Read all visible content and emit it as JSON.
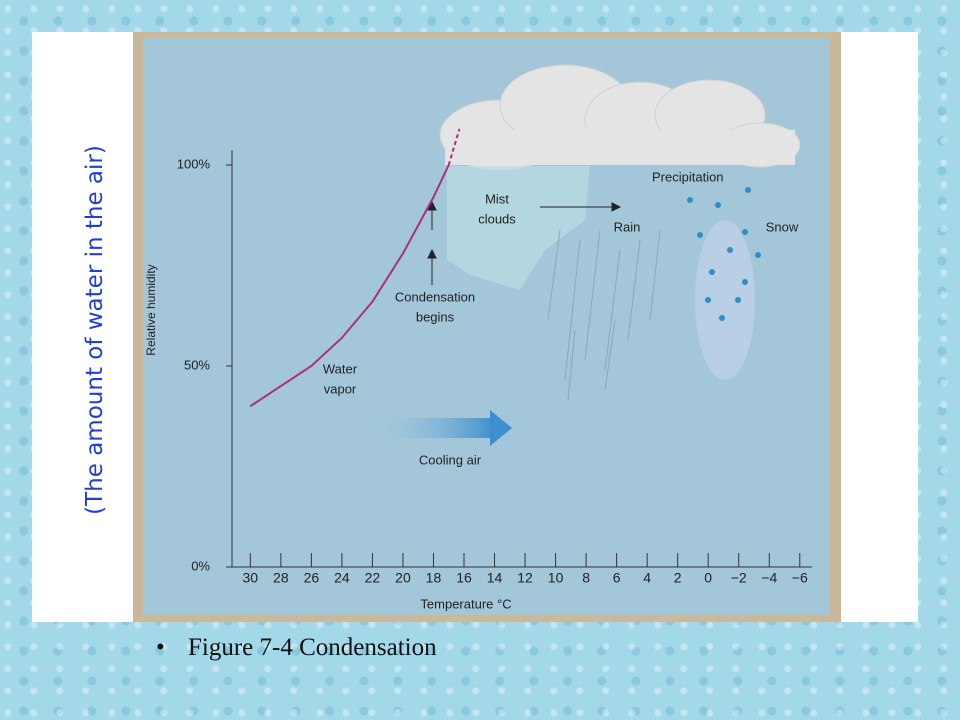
{
  "slide": {
    "side_note": "(The amount of water in the air)",
    "caption": "Figure 7-4 Condensation"
  },
  "chart_data": {
    "type": "line",
    "x_label": "Temperature °C",
    "y_label": "Relative humidity",
    "x": [
      30,
      28,
      26,
      24,
      22,
      20,
      18,
      17
    ],
    "series": [
      {
        "color": "#a8327a",
        "values": [
          40,
          45,
          50,
          57,
          66,
          78,
          92,
          100
        ]
      },
      {
        "color": "#a8327a",
        "dashed": true,
        "x": [
          17,
          16.3
        ],
        "values": [
          100,
          109
        ]
      }
    ],
    "xlim": [
      31.2,
      -6.8
    ],
    "ylim": [
      0,
      100
    ],
    "xticks": [
      30,
      28,
      26,
      24,
      22,
      20,
      18,
      16,
      14,
      12,
      10,
      8,
      6,
      4,
      2,
      0,
      {
        "value": -2,
        "label": "−2"
      },
      {
        "value": -4,
        "label": "−4"
      },
      {
        "value": -6,
        "label": "−6"
      }
    ],
    "yticks": [
      {
        "value": 0,
        "label": "0%"
      },
      {
        "value": 50,
        "label": "50%"
      },
      {
        "value": 100,
        "label": "100%"
      }
    ],
    "annotations": [
      [
        "Precipitation"
      ],
      [
        "Mist",
        "clouds"
      ],
      [
        "Rain"
      ],
      [
        "Snow"
      ],
      [
        "Condensation",
        "begins"
      ],
      [
        "Water",
        "vapor"
      ],
      [
        "Cooling air"
      ]
    ]
  }
}
